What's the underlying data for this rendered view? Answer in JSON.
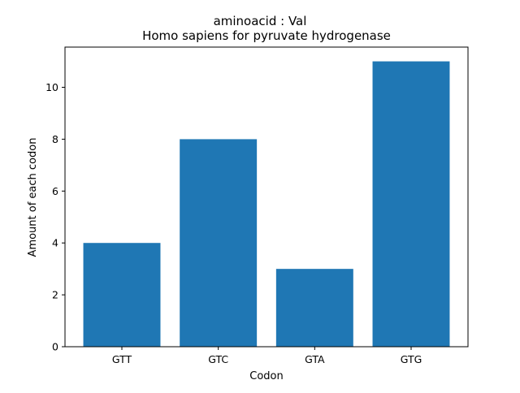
{
  "chart_data": {
    "type": "bar",
    "title_line1": "aminoacid : Val",
    "title_line2": "Homo sapiens for pyruvate hydrogenase",
    "xlabel": "Codon",
    "ylabel": "Amount of each codon",
    "categories": [
      "GTT",
      "GTC",
      "GTA",
      "GTG"
    ],
    "values": [
      4,
      8,
      3,
      11
    ],
    "ylim": [
      0,
      11.55
    ],
    "yticks": [
      0,
      2,
      4,
      6,
      8,
      10
    ],
    "grid": false,
    "legend": "none",
    "bar_color": "#1f77b4"
  }
}
